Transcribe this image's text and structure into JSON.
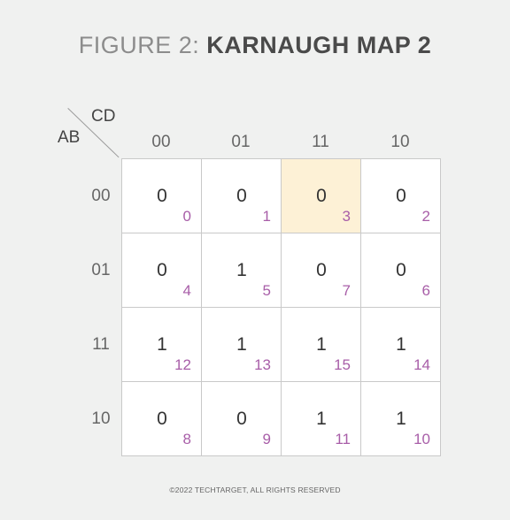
{
  "title": {
    "prefix": "FIGURE 2: ",
    "main": "KARNAUGH MAP 2"
  },
  "axes": {
    "column_var": "CD",
    "row_var": "AB"
  },
  "columns": [
    "00",
    "01",
    "11",
    "10"
  ],
  "rows": [
    "00",
    "01",
    "11",
    "10"
  ],
  "cells": [
    [
      {
        "value": "0",
        "index": "0"
      },
      {
        "value": "0",
        "index": "1"
      },
      {
        "value": "0",
        "index": "3"
      },
      {
        "value": "0",
        "index": "2"
      }
    ],
    [
      {
        "value": "0",
        "index": "4"
      },
      {
        "value": "1",
        "index": "5"
      },
      {
        "value": "0",
        "index": "7"
      },
      {
        "value": "0",
        "index": "6"
      }
    ],
    [
      {
        "value": "1",
        "index": "12"
      },
      {
        "value": "1",
        "index": "13"
      },
      {
        "value": "1",
        "index": "15"
      },
      {
        "value": "1",
        "index": "14"
      }
    ],
    [
      {
        "value": "0",
        "index": "8"
      },
      {
        "value": "0",
        "index": "9"
      },
      {
        "value": "1",
        "index": "11"
      },
      {
        "value": "1",
        "index": "10"
      }
    ]
  ],
  "highlight": {
    "row": 0,
    "col": 2,
    "color": "#fdf1d6"
  },
  "colors": {
    "index": "#a85ea8",
    "background": "#f0f1f0"
  },
  "footer": "©2022 TECHTARGET, ALL RIGHTS RESERVED"
}
